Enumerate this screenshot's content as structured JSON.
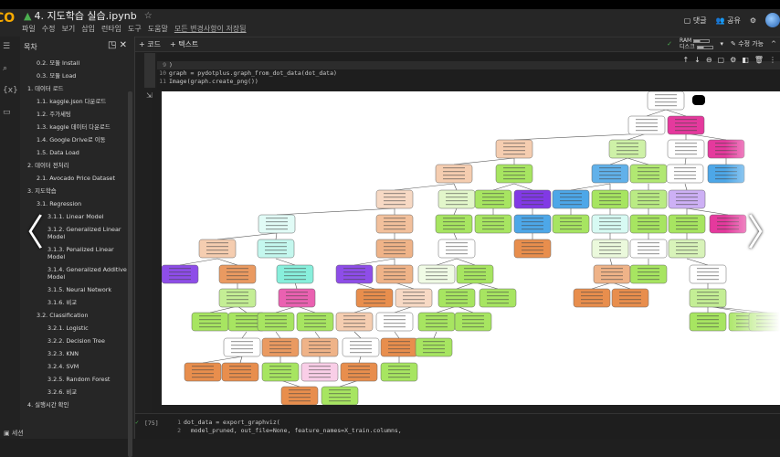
{
  "app": {
    "logo": "CO",
    "title": "4. 지도학습 실습.ipynb",
    "saved_status": "모든 변경사항이 저장됨"
  },
  "menu": [
    "파일",
    "수정",
    "보기",
    "삽입",
    "런타임",
    "도구",
    "도움말"
  ],
  "header_right": {
    "comment": "댓글",
    "share": "공유"
  },
  "toolbar": {
    "add_code": "+ 코드",
    "add_text": "+ 텍스트",
    "ram": "RAM",
    "disk": "디스크",
    "edit_mode": "수정 가능"
  },
  "sidebar": {
    "title": "목차",
    "items": [
      {
        "label": "0.2. 모듈 Install",
        "level": 2
      },
      {
        "label": "0.3. 모듈 Load",
        "level": 2
      },
      {
        "label": "1. 데이터 로드",
        "level": 1
      },
      {
        "label": "1.1. kaggle.json 다운로드",
        "level": 2
      },
      {
        "label": "1.2. 주가세팅",
        "level": 2
      },
      {
        "label": "1.3. kaggle 데이터 다운로드",
        "level": 2
      },
      {
        "label": "1.4. Google Drive로 이동",
        "level": 2
      },
      {
        "label": "1.5. Data Load",
        "level": 2
      },
      {
        "label": "2. 데이터 전처리",
        "level": 1
      },
      {
        "label": "2.1. Avocado Price Dataset",
        "level": 2
      },
      {
        "label": "3. 지도학습",
        "level": 1
      },
      {
        "label": "3.1. Regression",
        "level": 2
      },
      {
        "label": "3.1.1. Linear Model",
        "level": 3
      },
      {
        "label": "3.1.2. Generalized Linear Model",
        "level": 3
      },
      {
        "label": "3.1.3. Penalized Linear Model",
        "level": 3
      },
      {
        "label": "3.1.4. Generalized Additive Model",
        "level": 3
      },
      {
        "label": "3.1.5. Neural Network",
        "level": 3
      },
      {
        "label": "3.1.6. 비교",
        "level": 3
      },
      {
        "label": "3.2. Classification",
        "level": 2
      },
      {
        "label": "3.2.1. Logistic",
        "level": 3
      },
      {
        "label": "3.2.2. Decision Tree",
        "level": 3,
        "active": true
      },
      {
        "label": "3.2.3. KNN",
        "level": 3
      },
      {
        "label": "3.2.4. SVM",
        "level": 3
      },
      {
        "label": "3.2.5. Random Forest",
        "level": 3
      },
      {
        "label": "3.2.6. 비교",
        "level": 3
      },
      {
        "label": "4. 실행시간 확인",
        "level": 1
      }
    ],
    "session": "세션"
  },
  "cell1": {
    "lines": [
      {
        "n": "9",
        "text": ")"
      },
      {
        "n": "10",
        "text": "graph = pydotplus.graph_from_dot_data(dot_data)"
      },
      {
        "n": "11",
        "text": "Image(graph.create_png())"
      }
    ]
  },
  "cell2": {
    "count": "[75]",
    "line1_n": "1",
    "line1": "dot_data = export_graphviz(",
    "line2_n": "2",
    "line2": "  model_pruned, out_file=None, feature_names=X_train.columns,"
  },
  "tree_colors": {
    "orange": "#e58139",
    "green": "#9de24f",
    "blue": "#399de5",
    "pink": "#e5399d",
    "purple": "#8139e5",
    "teal": "#39e5c5"
  }
}
